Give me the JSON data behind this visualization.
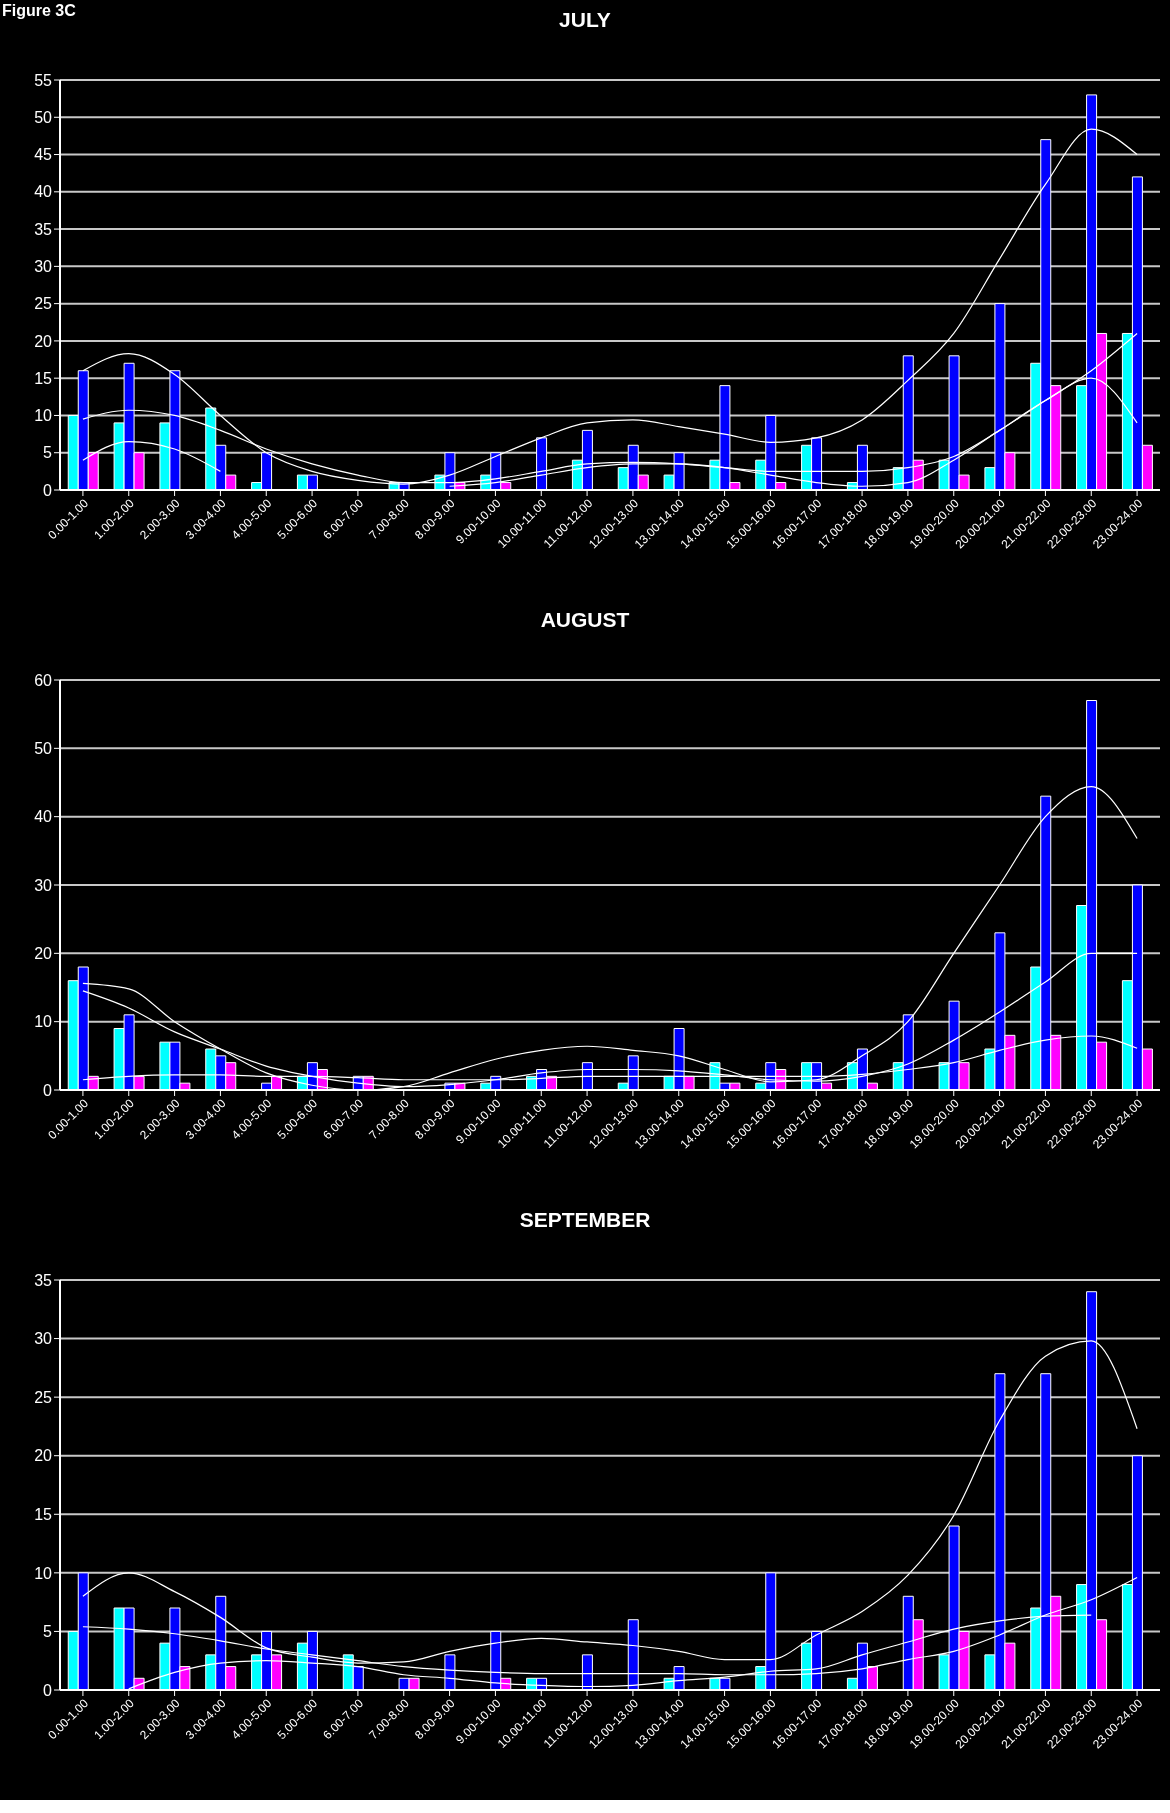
{
  "chart_data": [
    {
      "type": "bar",
      "title": "JULY",
      "annotations": [
        "Figure 3C"
      ],
      "categories": [
        "0.00-1.00",
        "1.00-2.00",
        "2.00-3.00",
        "3.00-4.00",
        "4.00-5.00",
        "5.00-6.00",
        "6.00-7.00",
        "7.00-8.00",
        "8.00-9.00",
        "9.00-10.00",
        "10.00-11.00",
        "11.00-12.00",
        "12.00-13.00",
        "13.00-14.00",
        "14.00-15.00",
        "15.00-16.00",
        "16.00-17.00",
        "17.00-18.00",
        "18.00-19.00",
        "19.00-20.00",
        "20.00-21.00",
        "21.00-22.00",
        "22.00-23.00",
        "23.00-24.00"
      ],
      "series": [
        {
          "color": "#00ffff",
          "values": [
            10,
            9,
            9,
            11,
            1,
            2,
            0,
            1,
            2,
            2,
            0,
            4,
            3,
            2,
            4,
            4,
            6,
            1,
            3,
            4,
            3,
            17,
            14,
            21
          ]
        },
        {
          "color": "#0000ff",
          "values": [
            16,
            17,
            16,
            6,
            5,
            2,
            0,
            1,
            5,
            5,
            7,
            8,
            6,
            5,
            14,
            10,
            7,
            6,
            18,
            18,
            25,
            47,
            53,
            42
          ]
        },
        {
          "color": "#ff00ff",
          "values": [
            5,
            5,
            0,
            2,
            0,
            0,
            0,
            0,
            1,
            1,
            0,
            0,
            2,
            0,
            1,
            1,
            0,
            0,
            4,
            2,
            5,
            14,
            21,
            6
          ]
        },
        {
          "type": "line",
          "color": "#ffffff",
          "values": [
            16,
            18.3,
            15.5,
            10,
            5,
            2.5,
            1.3,
            0.8,
            2,
            4.5,
            7,
            9,
            9.4,
            8.5,
            7.5,
            6.4,
            7,
            9.4,
            14.7,
            21,
            31,
            41,
            48.4,
            45
          ]
        },
        {
          "type": "line",
          "color": "#ffffff",
          "values": [
            9.5,
            10.7,
            10,
            8,
            5.5,
            3.5,
            2,
            1,
            1,
            1.5,
            2.5,
            3.5,
            3.7,
            3.5,
            3,
            2.5,
            2.5,
            2.5,
            3,
            4.5,
            8,
            12,
            16,
            21
          ]
        },
        {
          "type": "line",
          "color": "#ffffff",
          "values": [
            4,
            6.5,
            5.5,
            2.5,
            null,
            null,
            null,
            null,
            0.5,
            1,
            2,
            3,
            3.5,
            3.5,
            3,
            2,
            1,
            0.5,
            1,
            4,
            8,
            12,
            15,
            9
          ]
        }
      ],
      "ylim": [
        0,
        55
      ],
      "yticks": [
        0,
        5,
        10,
        15,
        20,
        25,
        30,
        35,
        40,
        45,
        50,
        55
      ],
      "grid": "y"
    },
    {
      "type": "bar",
      "title": "AUGUST",
      "categories": [
        "0.00-1.00",
        "1.00-2.00",
        "2.00-3.00",
        "3.00-4.00",
        "4.00-5.00",
        "5.00-6.00",
        "6.00-7.00",
        "7.00-8.00",
        "8.00-9.00",
        "9.00-10.00",
        "10.00-11.00",
        "11.00-12.00",
        "12.00-13.00",
        "13.00-14.00",
        "14.00-15.00",
        "15.00-16.00",
        "16.00-17.00",
        "17.00-18.00",
        "18.00-19.00",
        "19.00-20.00",
        "20.00-21.00",
        "21.00-22.00",
        "22.00-23.00",
        "23.00-24.00"
      ],
      "series": [
        {
          "color": "#00ffff",
          "values": [
            16,
            9,
            7,
            6,
            0,
            2,
            0,
            0,
            0,
            1,
            2,
            0,
            1,
            2,
            4,
            1,
            4,
            4,
            4,
            4,
            6,
            18,
            27,
            16
          ]
        },
        {
          "color": "#0000ff",
          "values": [
            18,
            11,
            7,
            5,
            1,
            4,
            2,
            0,
            1,
            2,
            3,
            4,
            5,
            9,
            1,
            4,
            4,
            6,
            11,
            13,
            23,
            43,
            57,
            30
          ]
        },
        {
          "color": "#ff00ff",
          "values": [
            2,
            2,
            1,
            4,
            2,
            3,
            2,
            0,
            1,
            0,
            2,
            0,
            0,
            2,
            1,
            3,
            1,
            1,
            0,
            4,
            8,
            8,
            7,
            6
          ]
        },
        {
          "type": "line",
          "color": "#ffffff",
          "values": [
            15.6,
            14.8,
            10,
            6,
            2.5,
            0.7,
            0,
            0.5,
            2.5,
            4.5,
            5.8,
            6.4,
            5.8,
            5,
            3,
            1.2,
            1.5,
            5,
            10,
            20,
            30,
            40,
            44.4,
            36.8
          ]
        },
        {
          "type": "line",
          "color": "#ffffff",
          "values": [
            14.5,
            12,
            8.5,
            6,
            3.5,
            2,
            1,
            0.5,
            0.8,
            1.5,
            2.5,
            3,
            3,
            2.8,
            2.2,
            1.5,
            1.3,
            2,
            3.8,
            7.3,
            11.4,
            15.8,
            20,
            20
          ]
        },
        {
          "type": "line",
          "color": "#ffffff",
          "values": [
            1.5,
            2,
            2.2,
            2.2,
            2,
            2,
            1.8,
            1.5,
            1.5,
            1.5,
            1.7,
            2,
            2,
            2,
            2,
            2,
            2,
            2.3,
            3,
            4,
            5.8,
            7.3,
            7.9,
            6.1
          ]
        }
      ],
      "ylim": [
        0,
        60
      ],
      "yticks": [
        0,
        10,
        20,
        30,
        40,
        50,
        60
      ],
      "grid": "y"
    },
    {
      "type": "bar",
      "title": "SEPTEMBER",
      "categories": [
        "0.00-1.00",
        "1.00-2.00",
        "2.00-3.00",
        "3.00-4.00",
        "4.00-5.00",
        "5.00-6.00",
        "6.00-7.00",
        "7.00-8.00",
        "8.00-9.00",
        "9.00-10.00",
        "10.00-11.00",
        "11.00-12.00",
        "12.00-13.00",
        "13.00-14.00",
        "14.00-15.00",
        "15.00-16.00",
        "16.00-17.00",
        "17.00-18.00",
        "18.00-19.00",
        "19.00-20.00",
        "20.00-21.00",
        "21.00-22.00",
        "22.00-23.00",
        "23.00-24.00"
      ],
      "series": [
        {
          "color": "#00ffff",
          "values": [
            5,
            7,
            4,
            3,
            3,
            4,
            3,
            0,
            0,
            0,
            1,
            0,
            0,
            1,
            1,
            2,
            4,
            1,
            0,
            3,
            3,
            7,
            9,
            9
          ]
        },
        {
          "color": "#0000ff",
          "values": [
            10,
            7,
            7,
            8,
            5,
            5,
            2,
            1,
            3,
            5,
            1,
            3,
            6,
            2,
            1,
            10,
            5,
            4,
            8,
            14,
            27,
            27,
            34,
            20
          ]
        },
        {
          "color": "#ff00ff",
          "values": [
            0,
            1,
            2,
            2,
            3,
            0,
            0,
            1,
            0,
            1,
            0,
            0,
            0,
            0,
            0,
            0,
            0,
            2,
            6,
            5,
            4,
            8,
            6,
            0
          ]
        },
        {
          "type": "line",
          "color": "#ffffff",
          "values": [
            8,
            10,
            8.4,
            6.2,
            3.6,
            2.8,
            2.3,
            2.4,
            3.3,
            4,
            4.4,
            4.1,
            3.8,
            3.3,
            2.6,
            2.6,
            4.7,
            6.7,
            9.8,
            14.9,
            23,
            28.5,
            29.8,
            22.3
          ]
        },
        {
          "type": "line",
          "color": "#ffffff",
          "values": [
            5.4,
            5.2,
            4.8,
            4.2,
            3.5,
            3,
            2.5,
            2,
            1.7,
            1.5,
            1.4,
            1.4,
            1.4,
            1.4,
            1.3,
            1.3,
            1.4,
            1.8,
            2.6,
            3.3,
            4.7,
            6.4,
            7.7,
            9.6
          ]
        },
        {
          "type": "line",
          "color": "#ffffff",
          "values": [
            null,
            0.1,
            1.5,
            2.3,
            2.5,
            2.3,
            2,
            1.3,
            1,
            0.6,
            0.4,
            0.3,
            0.4,
            0.8,
            1.1,
            1.6,
            1.8,
            3,
            4.1,
            5.2,
            5.9,
            6.3,
            6.4,
            null
          ]
        }
      ],
      "ylim": [
        0,
        35
      ],
      "yticks": [
        0,
        5,
        10,
        15,
        20,
        25,
        30,
        35
      ],
      "grid": "y"
    }
  ]
}
